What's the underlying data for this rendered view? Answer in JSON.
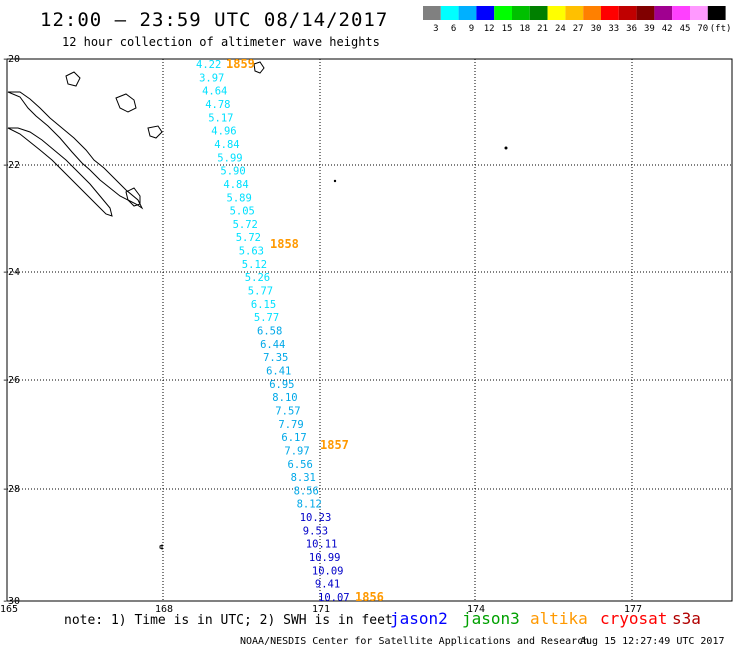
{
  "header": {
    "title": "12:00 — 23:59 UTC 08/14/2017",
    "subtitle": "12 hour collection of altimeter wave heights"
  },
  "color_scale": {
    "labels": [
      "3",
      "6",
      "9",
      "12",
      "15",
      "18",
      "21",
      "24",
      "27",
      "30",
      "33",
      "36",
      "39",
      "42",
      "45",
      "70",
      "(ft)"
    ],
    "colors": [
      "#808080",
      "#00ffff",
      "#00b0ff",
      "#0000ff",
      "#00ff00",
      "#00c000",
      "#008000",
      "#ffff00",
      "#ffc000",
      "#ff8000",
      "#ff0000",
      "#c00000",
      "#800000",
      "#a00090",
      "#ff40ff",
      "#ff99ff",
      "#000000"
    ]
  },
  "axes": {
    "lat_labels": [
      "-20",
      "-22",
      "-24",
      "-26",
      "-28",
      "-30"
    ],
    "lon_labels": [
      "165",
      "168",
      "171",
      "174",
      "177"
    ]
  },
  "track": {
    "heights": [
      "4.22",
      "3.97",
      "4.64",
      "4.78",
      "5.17",
      "4.96",
      "4.84",
      "5.99",
      "5.90",
      "4.84",
      "5.89",
      "5.05",
      "5.72",
      "5.72",
      "5.63",
      "5.12",
      "5.26",
      "5.77",
      "6.15",
      "5.77",
      "6.58",
      "6.44",
      "7.35",
      "6.41",
      "6.95",
      "8.10",
      "7.57",
      "7.79",
      "6.17",
      "7.97",
      "6.56",
      "8.31",
      "8.56",
      "8.12",
      "10.23",
      "9.53",
      "10.11",
      "10.99",
      "10.09",
      "9.41",
      "10.07"
    ],
    "colors": {
      "cyan": "#00e0ff",
      "light_blue": "#00a8e8",
      "dark_blue": "#0000c8"
    },
    "time_labels": [
      "1859",
      "1858",
      "1857",
      "1856"
    ],
    "time_color": "#ff9900"
  },
  "footer": {
    "note": "note: 1) Time is in UTC; 2) SWH is in feet",
    "satellites": [
      {
        "name": "jason2",
        "color": "#0000ff"
      },
      {
        "name": "jason3",
        "color": "#00a000"
      },
      {
        "name": "altika",
        "color": "#ff9900"
      },
      {
        "name": "cryosat",
        "color": "#ff0000"
      },
      {
        "name": "s3a",
        "color": "#b00000"
      }
    ],
    "credit": "NOAA/NESDIS Center for Satellite Applications and Research",
    "timestamp": "Aug 15 12:27:49 UTC 2017"
  }
}
